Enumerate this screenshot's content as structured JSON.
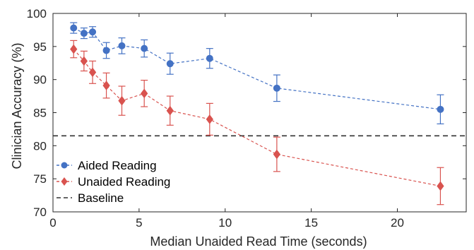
{
  "chart_data": {
    "type": "scatter",
    "title": "",
    "xlabel": "Median Unaided Read Time (seconds)",
    "ylabel": "Clinician Accuracy (%)",
    "xlim": [
      0,
      24
    ],
    "ylim": [
      70,
      100
    ],
    "x_ticks": [
      0,
      5,
      10,
      15,
      20
    ],
    "y_ticks": [
      70,
      75,
      80,
      85,
      90,
      95,
      100
    ],
    "grid": false,
    "legend_position": "bottom-left",
    "series": [
      {
        "name": "Aided Reading",
        "color": "#4472c4",
        "marker": "circle",
        "line_style": "dashed",
        "x": [
          1.2,
          1.8,
          2.3,
          3.1,
          4.0,
          5.3,
          6.8,
          9.1,
          13.0,
          22.5
        ],
        "y": [
          97.8,
          97.0,
          97.2,
          94.4,
          95.1,
          94.7,
          92.4,
          93.2,
          88.7,
          85.5
        ],
        "err": [
          0.8,
          0.8,
          0.8,
          1.2,
          1.2,
          1.3,
          1.6,
          1.5,
          2.0,
          2.2
        ]
      },
      {
        "name": "Unaided Reading",
        "color": "#d9534f",
        "marker": "diamond",
        "line_style": "dashed",
        "x": [
          1.2,
          1.8,
          2.3,
          3.1,
          4.0,
          5.3,
          6.8,
          9.1,
          13.0,
          22.5
        ],
        "y": [
          94.6,
          92.8,
          91.1,
          89.1,
          86.8,
          87.9,
          85.3,
          84.0,
          78.7,
          73.9
        ],
        "err": [
          1.3,
          1.5,
          1.7,
          1.9,
          2.2,
          2.0,
          2.2,
          2.4,
          2.6,
          2.8
        ]
      }
    ],
    "baseline": {
      "name": "Baseline",
      "value": 81.5,
      "color": "#333333",
      "line_style": "dashed"
    }
  }
}
